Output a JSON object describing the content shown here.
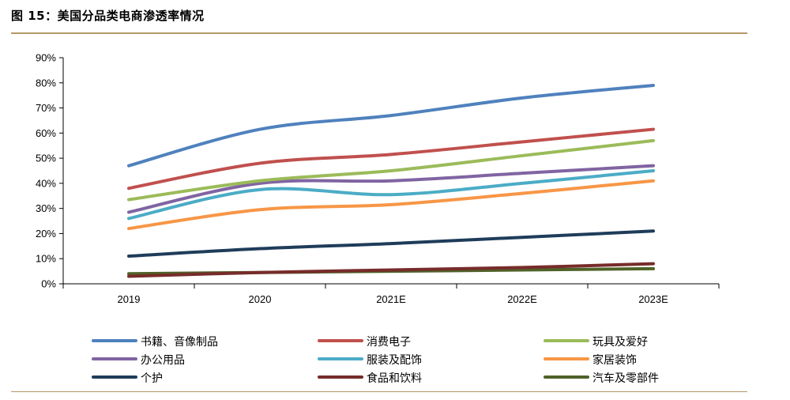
{
  "figure": {
    "title": "图 15：美国分品类电商渗透率情况"
  },
  "chart_data": {
    "type": "line",
    "title": "",
    "xlabel": "",
    "ylabel": "",
    "categories": [
      "2019",
      "2020",
      "2021E",
      "2022E",
      "2023E"
    ],
    "ylim": [
      0,
      90
    ],
    "yticks": [
      "0%",
      "10%",
      "20%",
      "30%",
      "40%",
      "50%",
      "60%",
      "70%",
      "80%",
      "90%"
    ],
    "ytick_values": [
      0,
      10,
      20,
      30,
      40,
      50,
      60,
      70,
      80,
      90
    ],
    "grid": false,
    "legend_position": "bottom",
    "smooth": true,
    "series": [
      {
        "name": "书籍、音像制品",
        "color": "#4f81bd",
        "values": [
          47,
          61.5,
          67,
          74,
          79
        ]
      },
      {
        "name": "消费电子",
        "color": "#c0504d",
        "values": [
          38,
          48,
          51.5,
          56.5,
          61.5
        ]
      },
      {
        "name": "玩具及爱好",
        "color": "#9bbb59",
        "values": [
          33.5,
          41,
          45,
          51,
          57
        ]
      },
      {
        "name": "办公用品",
        "color": "#8064a2",
        "values": [
          28.5,
          40,
          41,
          44,
          47
        ]
      },
      {
        "name": "服装及配饰",
        "color": "#4bacc6",
        "values": [
          26,
          37.5,
          35.5,
          40,
          45
        ]
      },
      {
        "name": "家居装饰",
        "color": "#f79646",
        "values": [
          22,
          29.5,
          31.5,
          36,
          41
        ]
      },
      {
        "name": "个护",
        "color": "#1f3c5a",
        "values": [
          11,
          14,
          16,
          18.5,
          21
        ]
      },
      {
        "name": "食品和饮料",
        "color": "#772c2a",
        "values": [
          3,
          4.5,
          5.5,
          6.5,
          8
        ]
      },
      {
        "name": "汽车及零部件",
        "color": "#4f6228",
        "values": [
          4,
          4.5,
          5,
          5.5,
          6
        ]
      }
    ]
  }
}
